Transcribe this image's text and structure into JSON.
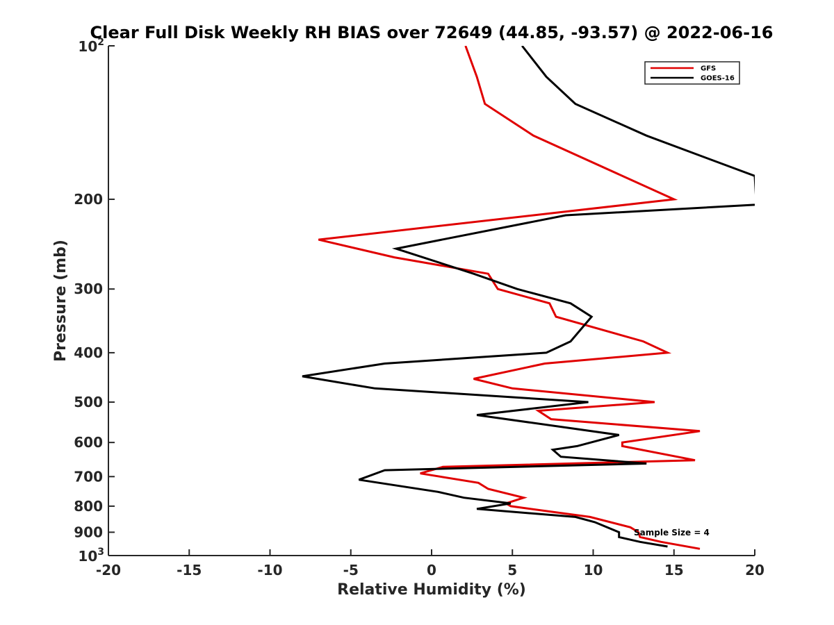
{
  "chart_data": {
    "type": "line",
    "title": "Clear Full Disk Weekly RH BIAS over 72649 (44.85, -93.57) @ 2022-06-16",
    "xlabel": "Relative Humidity (%)",
    "ylabel": "Pressure (mb)",
    "xlim": [
      -20,
      20
    ],
    "ylim": [
      100,
      1000
    ],
    "y_scale": "log",
    "y_reversed": true,
    "x_ticks": [
      "-20",
      "-15",
      "-10",
      "-5",
      "0",
      "5",
      "10",
      "15",
      "20"
    ],
    "y_ticks": [
      {
        "value": 100,
        "base": "10",
        "exp": "2"
      },
      {
        "value": 200,
        "label": "200"
      },
      {
        "value": 300,
        "label": "300"
      },
      {
        "value": 400,
        "label": "400"
      },
      {
        "value": 500,
        "label": "500"
      },
      {
        "value": 600,
        "label": "600"
      },
      {
        "value": 700,
        "label": "700"
      },
      {
        "value": 800,
        "label": "800"
      },
      {
        "value": 900,
        "label": "900"
      },
      {
        "value": 1000,
        "base": "10",
        "exp": "3"
      }
    ],
    "grid": false,
    "legend_position": "top-right",
    "annotation": "Sample Size = 4",
    "series": [
      {
        "name": "GFS",
        "color": "#e00000",
        "points": [
          [
            2.1,
            100
          ],
          [
            2.8,
            115
          ],
          [
            3.3,
            130
          ],
          [
            6.3,
            150
          ],
          [
            15.0,
            200
          ],
          [
            -7.0,
            240
          ],
          [
            -2.3,
            260
          ],
          [
            3.5,
            280
          ],
          [
            4.1,
            300
          ],
          [
            7.3,
            320
          ],
          [
            7.7,
            340
          ],
          [
            13.1,
            380
          ],
          [
            14.6,
            400
          ],
          [
            7.0,
            420
          ],
          [
            2.6,
            450
          ],
          [
            5.0,
            470
          ],
          [
            13.8,
            500
          ],
          [
            6.6,
            520
          ],
          [
            7.4,
            540
          ],
          [
            16.6,
            570
          ],
          [
            11.8,
            600
          ],
          [
            11.8,
            610
          ],
          [
            16.3,
            650
          ],
          [
            0.7,
            670
          ],
          [
            -0.7,
            690
          ],
          [
            2.9,
            720
          ],
          [
            3.5,
            740
          ],
          [
            5.7,
            770
          ],
          [
            4.6,
            790
          ],
          [
            4.9,
            800
          ],
          [
            9.8,
            840
          ],
          [
            12.3,
            880
          ],
          [
            12.8,
            900
          ],
          [
            12.9,
            920
          ],
          [
            14.2,
            940
          ],
          [
            16.6,
            970
          ]
        ]
      },
      {
        "name": "GOES-16",
        "color": "#000000",
        "points": [
          [
            5.6,
            100
          ],
          [
            7.1,
            115
          ],
          [
            8.9,
            130
          ],
          [
            13.3,
            150
          ],
          [
            20.0,
            180
          ],
          [
            20.1,
            205
          ],
          [
            8.3,
            215
          ],
          [
            -2.2,
            250
          ],
          [
            2.6,
            280
          ],
          [
            5.3,
            300
          ],
          [
            8.6,
            320
          ],
          [
            9.9,
            340
          ],
          [
            8.6,
            380
          ],
          [
            7.1,
            400
          ],
          [
            -2.9,
            420
          ],
          [
            -8.0,
            445
          ],
          [
            -3.5,
            470
          ],
          [
            9.7,
            500
          ],
          [
            2.8,
            530
          ],
          [
            11.6,
            580
          ],
          [
            9.0,
            610
          ],
          [
            7.5,
            620
          ],
          [
            8.0,
            640
          ],
          [
            13.3,
            660
          ],
          [
            -2.9,
            680
          ],
          [
            -4.5,
            710
          ],
          [
            0.4,
            750
          ],
          [
            2.0,
            770
          ],
          [
            4.9,
            790
          ],
          [
            2.8,
            810
          ],
          [
            8.9,
            840
          ],
          [
            10.1,
            860
          ],
          [
            11.6,
            900
          ],
          [
            11.6,
            920
          ],
          [
            12.9,
            940
          ],
          [
            14.6,
            960
          ]
        ]
      }
    ]
  }
}
